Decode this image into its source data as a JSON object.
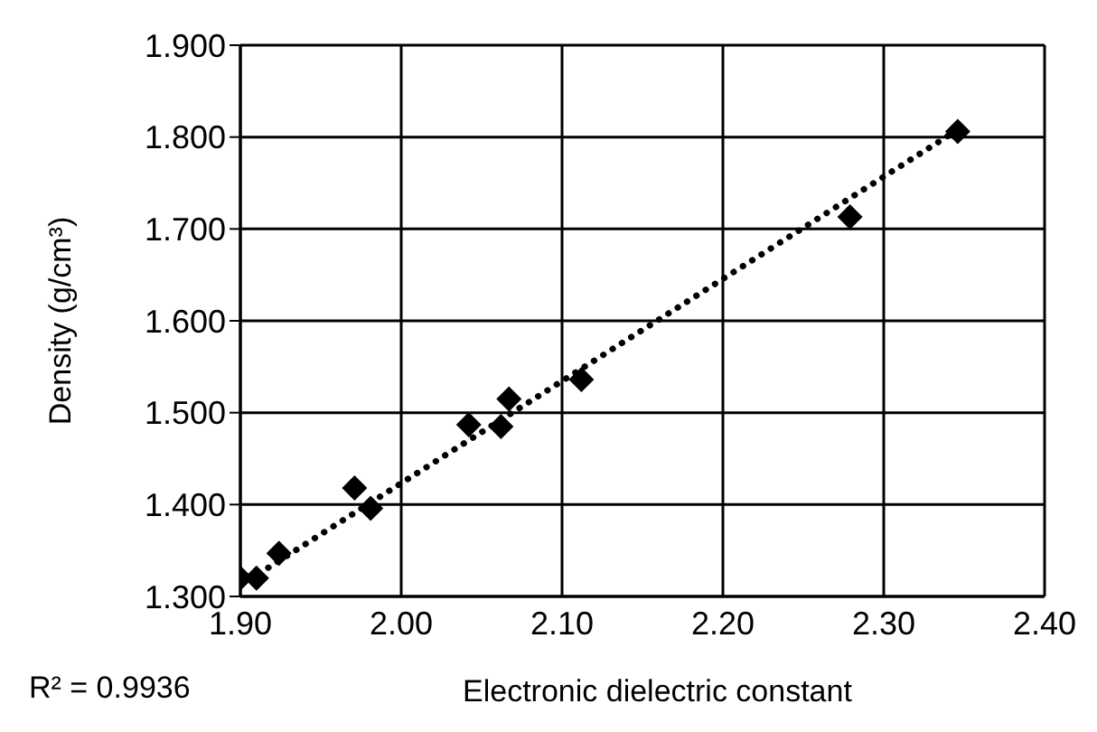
{
  "chart_data": {
    "type": "scatter",
    "xlabel": "Electronic dielectric constant",
    "ylabel": "Density (g/cm³)",
    "annotations": [
      "R² = 0.9936"
    ],
    "series": [
      {
        "color": "#000000",
        "marker": "diamond",
        "x": [
          1.9,
          1.91,
          1.924,
          1.971,
          1.981,
          2.042,
          2.062,
          2.067,
          2.112,
          2.279,
          2.346
        ],
        "values": [
          1.32,
          1.32,
          1.347,
          1.418,
          1.396,
          1.487,
          1.485,
          1.515,
          1.536,
          1.713,
          1.806
        ]
      },
      {
        "type": "line",
        "color": "#000000",
        "marker": "none",
        "line_style": "dotted",
        "x": [
          1.9,
          2.346
        ],
        "values": [
          1.312,
          1.808
        ]
      }
    ],
    "xlim": [
      1.9,
      2.4
    ],
    "ylim": [
      1.3,
      1.9
    ],
    "xticks": [
      {
        "value": 1.9,
        "label": "1.90"
      },
      {
        "value": 2.0,
        "label": "2.00"
      },
      {
        "value": 2.1,
        "label": "2.10"
      },
      {
        "value": 2.2,
        "label": "2.20"
      },
      {
        "value": 2.3,
        "label": "2.30"
      },
      {
        "value": 2.4,
        "label": "2.40"
      }
    ],
    "yticks": [
      {
        "value": 1.3,
        "label": "1.300"
      },
      {
        "value": 1.4,
        "label": "1.400"
      },
      {
        "value": 1.5,
        "label": "1.500"
      },
      {
        "value": 1.6,
        "label": "1.600"
      },
      {
        "value": 1.7,
        "label": "1.700"
      },
      {
        "value": 1.8,
        "label": "1.800"
      },
      {
        "value": 1.9,
        "label": "1.900"
      }
    ],
    "grid": true,
    "legend": false
  }
}
